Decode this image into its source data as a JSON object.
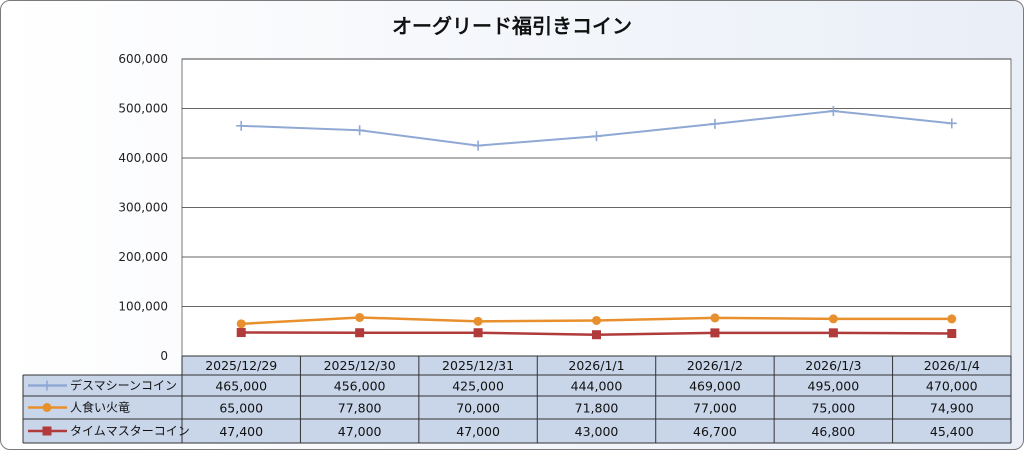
{
  "chart_data": {
    "type": "line",
    "title": "オーグリード福引きコイン",
    "categories": [
      "2025/12/29",
      "2025/12/30",
      "2025/12/31",
      "2026/1/1",
      "2026/1/2",
      "2026/1/3",
      "2026/1/4"
    ],
    "ylim": [
      0,
      600000
    ],
    "yticks": [
      "0",
      "100,000",
      "200,000",
      "300,000",
      "400,000",
      "500,000",
      "600,000"
    ],
    "grid": true,
    "legend": "data-table",
    "series": [
      {
        "name": "デスマシーンコイン",
        "color": "#8fa8d4",
        "marker": "plus",
        "values": [
          465000,
          456000,
          425000,
          444000,
          469000,
          495000,
          470000
        ],
        "labels": [
          "465,000",
          "456,000",
          "425,000",
          "444,000",
          "469,000",
          "495,000",
          "470,000"
        ]
      },
      {
        "name": "人食い火竜",
        "color": "#e8902e",
        "marker": "circle",
        "values": [
          65000,
          77800,
          70000,
          71800,
          77000,
          75000,
          74900
        ],
        "labels": [
          "65,000",
          "77,800",
          "70,000",
          "71,800",
          "77,000",
          "75,000",
          "74,900"
        ]
      },
      {
        "name": "タイムマスターコイン",
        "color": "#b13a3a",
        "marker": "square",
        "values": [
          47400,
          47000,
          47000,
          43000,
          46700,
          46800,
          45400
        ],
        "labels": [
          "47,400",
          "47,000",
          "47,000",
          "43,000",
          "46,700",
          "46,800",
          "45,400"
        ]
      }
    ]
  }
}
